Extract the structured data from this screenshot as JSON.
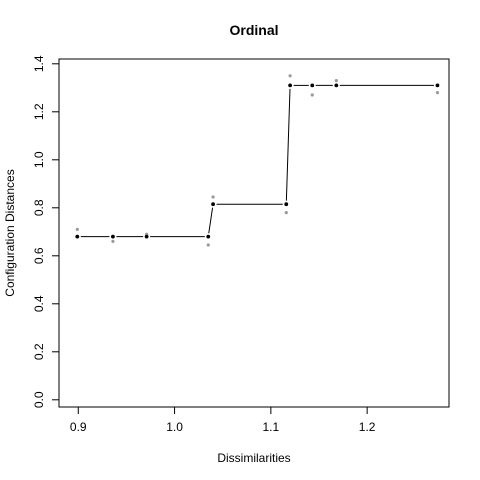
{
  "chart_data": {
    "type": "scatter",
    "title": "Ordinal",
    "xlabel": "Dissimilarities",
    "ylabel": "Configuration Distances",
    "xlim": [
      0.88,
      1.285
    ],
    "ylim": [
      -0.03,
      1.42
    ],
    "xticks": [
      0.9,
      1.0,
      1.1,
      1.2
    ],
    "xtick_labels": [
      "0.9",
      "1.0",
      "1.1",
      "1.2"
    ],
    "yticks": [
      0.0,
      0.2,
      0.4,
      0.6,
      0.8,
      1.0,
      1.2,
      1.4
    ],
    "ytick_labels": [
      "0.0",
      "0.2",
      "0.4",
      "0.6",
      "0.8",
      "1.0",
      "1.2",
      "1.4"
    ],
    "grid": false,
    "series": [
      {
        "role": "observed",
        "color": "#9a9a9a",
        "x": [
          0.899,
          0.936,
          0.971,
          1.035,
          1.04,
          1.116,
          1.12,
          1.143,
          1.168,
          1.273
        ],
        "y": [
          0.71,
          0.66,
          0.69,
          0.645,
          0.845,
          0.78,
          1.35,
          1.27,
          1.33,
          1.28
        ]
      },
      {
        "role": "fitted",
        "color": "#000000",
        "x": [
          0.899,
          0.936,
          0.971,
          1.035,
          1.04,
          1.116,
          1.12,
          1.143,
          1.168,
          1.273
        ],
        "y": [
          0.68,
          0.68,
          0.68,
          0.68,
          0.815,
          0.815,
          1.31,
          1.31,
          1.31,
          1.31
        ]
      }
    ]
  }
}
